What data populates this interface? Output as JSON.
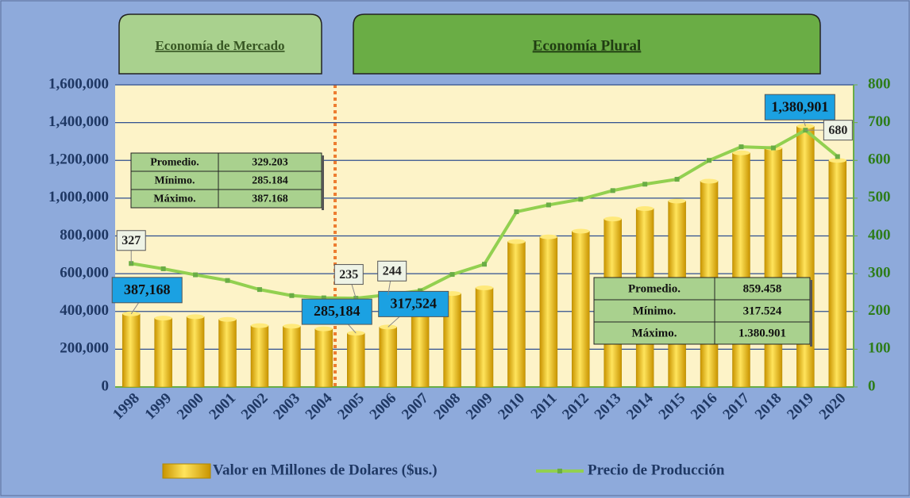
{
  "chart_data": {
    "type": "bar_line",
    "categories": [
      "1998",
      "1999",
      "2000",
      "2001",
      "2002",
      "2003",
      "2004",
      "2005",
      "2006",
      "2007",
      "2008",
      "2009",
      "2010",
      "2011",
      "2012",
      "2013",
      "2014",
      "2015",
      "2016",
      "2017",
      "2018",
      "2019",
      "2020"
    ],
    "series": [
      {
        "name": "Valor en Millones de Dolares ($us.)",
        "color": "#f5c400",
        "type": "bar",
        "values": [
          387168,
          365000,
          372000,
          358000,
          325000,
          322000,
          308000,
          285184,
          317524,
          385000,
          495000,
          525000,
          770000,
          795000,
          825000,
          890000,
          945000,
          985000,
          1090000,
          1240000,
          1265000,
          1380901,
          1200000
        ],
        "value_labels": [
          "387,168",
          null,
          null,
          null,
          null,
          null,
          null,
          "285,184",
          "317,524",
          null,
          null,
          null,
          null,
          null,
          null,
          null,
          null,
          null,
          null,
          null,
          null,
          "1,380,901",
          null
        ]
      },
      {
        "name": "Precio de Producción",
        "color": "#92d050",
        "type": "line",
        "axis": "y2",
        "values": [
          327,
          313,
          297,
          282,
          258,
          242,
          236,
          235,
          244,
          255,
          298,
          325,
          464,
          482,
          497,
          520,
          537,
          550,
          600,
          636,
          633,
          680,
          610
        ],
        "value_labels": [
          "327",
          null,
          null,
          null,
          null,
          null,
          null,
          "235",
          "244",
          null,
          null,
          null,
          null,
          null,
          null,
          null,
          null,
          null,
          null,
          null,
          null,
          "680",
          null
        ]
      }
    ],
    "ylim": [
      0,
      1600000
    ],
    "yticks": [
      0,
      {
        "value": 200000,
        "label": "200,000"
      },
      {
        "value": 400000,
        "label": "400,000"
      },
      {
        "value": 600000,
        "label": "600,000"
      },
      {
        "value": 800000,
        "label": "800,000"
      },
      {
        "value": 1000000,
        "label": "1,000,000"
      },
      {
        "value": 1200000,
        "label": "1,200,000"
      },
      {
        "value": 1400000,
        "label": "1,400,000"
      },
      {
        "value": 1600000,
        "label": "1,600,000"
      }
    ],
    "y2lim": [
      0,
      800
    ],
    "y2ticks": [
      0,
      100,
      200,
      300,
      400,
      500,
      600,
      700,
      800
    ],
    "grid": true,
    "legend": "bottom",
    "periods": [
      {
        "label": "Economía de Mercado"
      },
      {
        "label": "Economía Plural"
      }
    ],
    "tables": [
      {
        "rows": [
          [
            "Promedio.",
            "329.203"
          ],
          [
            "Mínimo.",
            "285.184"
          ],
          [
            "Máximo.",
            "387.168"
          ]
        ]
      },
      {
        "rows": [
          [
            "Promedio.",
            "859.458"
          ],
          [
            "Mínimo.",
            "317.524"
          ],
          [
            "Máximo.",
            "1.380.901"
          ]
        ]
      }
    ]
  }
}
